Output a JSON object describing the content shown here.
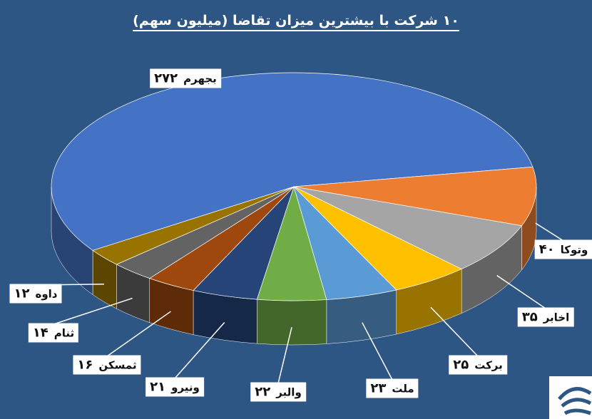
{
  "chart_data": {
    "type": "pie3d",
    "title": "۱۰ شرکت با بیشترین میزان تقاضا (میلیون سهم)",
    "categories": [
      "بجهرم",
      "وتوکا",
      "اخابر",
      "برکت",
      "ملت",
      "والبر",
      "ونیرو",
      "ثمسکن",
      "ثنام",
      "داوه"
    ],
    "values": [
      272,
      40,
      35,
      25,
      23,
      22,
      21,
      16,
      14,
      12
    ],
    "value_labels": [
      "۲۷۲",
      "۴۰",
      "۳۵",
      "۲۵",
      "۲۳",
      "۲۲",
      "۲۱",
      "۱۶",
      "۱۴",
      "۱۲"
    ],
    "colors": [
      "#4472c4",
      "#ed7d31",
      "#a5a5a5",
      "#ffc000",
      "#5b9bd5",
      "#70ad47",
      "#264478",
      "#9e480e",
      "#636363",
      "#997300"
    ]
  }
}
